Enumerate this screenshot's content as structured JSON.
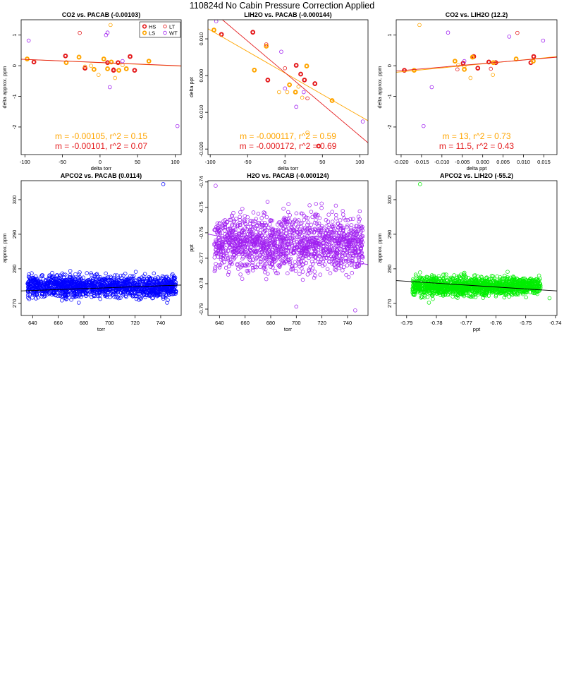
{
  "page_title": "110824d   No Cabin Pressure Correction Applied",
  "colors": {
    "HS": "#e41a1c",
    "LS": "#ffa500",
    "LT": "#e41a1c",
    "WT": "#a020f0",
    "blue": "#0000ff",
    "purple": "#a020f0",
    "green": "#00ee00",
    "axis": "#000000"
  },
  "chart_data": [
    {
      "type": "scatter",
      "title": "CO2 vs. PACAB (-0.00103)",
      "xlabel": "delta torr",
      "ylabel": "delta approx. ppm",
      "xlim": [
        -105,
        108
      ],
      "ylim": [
        -2.9,
        1.5
      ],
      "xticks": [
        -100,
        -50,
        0,
        50,
        100
      ],
      "yticks": [
        -2,
        -1,
        0,
        1
      ],
      "legend": {
        "placement": "top-right",
        "entries": [
          {
            "label": "HS",
            "color": "#e41a1c",
            "thick": true
          },
          {
            "label": "LT",
            "color": "#e41a1c",
            "thick": false
          },
          {
            "label": "LS",
            "color": "#ffa500",
            "thick": true
          },
          {
            "label": "WT",
            "color": "#a020f0",
            "thick": false
          }
        ]
      },
      "series": [
        {
          "name": "HS",
          "color": "#e41a1c",
          "thick": true,
          "x": [
            -88,
            -46,
            -20,
            10,
            18,
            24,
            40,
            46
          ],
          "y": [
            0.12,
            0.32,
            -0.08,
            0.1,
            -0.15,
            0.1,
            0.3,
            -0.15
          ]
        },
        {
          "name": "LS",
          "color": "#ffa500",
          "thick": true,
          "x": [
            -97,
            -45,
            -28,
            -8,
            5,
            10,
            15,
            25,
            35,
            65
          ],
          "y": [
            0.22,
            0.1,
            0.28,
            -0.12,
            0.22,
            -0.1,
            0.12,
            -0.15,
            -0.1,
            0.15
          ]
        },
        {
          "name": "LT",
          "color": "#e41a1c",
          "thick": false,
          "x": [
            -27,
            18
          ],
          "y": [
            1.07,
            -0.12
          ]
        },
        {
          "name": "WT",
          "color": "#a020f0",
          "thick": false,
          "x": [
            -95,
            8,
            10,
            13,
            30,
            103
          ],
          "y": [
            0.82,
            1.0,
            1.08,
            -0.7,
            0.15,
            -1.97
          ]
        },
        {
          "name": "",
          "color": "#ffa500",
          "thick": false,
          "x": [
            -20,
            -12,
            -2,
            14,
            20,
            30
          ],
          "y": [
            -0.03,
            0.0,
            -0.3,
            1.33,
            -0.4,
            0.02
          ]
        }
      ],
      "lines": [
        {
          "color": "#ffa500",
          "slope": -0.00105,
          "intercept": 0.1
        },
        {
          "color": "#e41a1c",
          "slope": -0.00101,
          "intercept": 0.105
        }
      ],
      "annotations": [
        {
          "text": "m = -0.00105, r^2 = 0.15",
          "color": "#ffa500"
        },
        {
          "text": "m = -0.00101, r^2 = 0.07",
          "color": "#e41a1c"
        }
      ]
    },
    {
      "type": "scatter",
      "title": "LIH2O vs. PACAB (-0.000144)",
      "xlabel": "delta torr",
      "ylabel": "delta ppt",
      "xlim": [
        -103,
        111
      ],
      "ylim": [
        -0.0215,
        0.0152
      ],
      "xticks": [
        -100,
        -50,
        0,
        50,
        100
      ],
      "yticks": [
        -0.02,
        -0.01,
        0,
        0.01
      ],
      "ytick_labels": [
        "-0.020",
        "-0.010",
        "0.000",
        "0.010"
      ],
      "series": [
        {
          "name": "HS",
          "color": "#e41a1c",
          "thick": true,
          "x": [
            -85,
            -43,
            -23,
            15,
            21,
            26,
            40,
            45
          ],
          "y": [
            0.0112,
            0.0118,
            -0.0012,
            0.0028,
            0.0004,
            -0.0012,
            -0.0022,
            -0.0192
          ]
        },
        {
          "name": "LS",
          "color": "#ffa500",
          "thick": true,
          "x": [
            -95,
            -41,
            -25,
            6,
            14,
            29,
            63
          ],
          "y": [
            0.0124,
            0.0015,
            0.008,
            -0.0025,
            -0.0045,
            0.0026,
            -0.0068
          ]
        },
        {
          "name": "LT",
          "color": "#e41a1c",
          "thick": false,
          "x": [
            -25,
            0,
            30
          ],
          "y": [
            0.0085,
            0.002,
            -0.0062
          ]
        },
        {
          "name": "WT",
          "color": "#a020f0",
          "thick": false,
          "x": [
            -92,
            -5,
            0,
            15,
            25,
            104
          ],
          "y": [
            0.0148,
            0.0065,
            -0.0035,
            -0.0085,
            -0.0045,
            -0.0125
          ]
        },
        {
          "name": "",
          "color": "#ffa500",
          "thick": false,
          "x": [
            -8,
            3,
            18,
            23,
            30
          ],
          "y": [
            -0.0045,
            -0.0045,
            -0.003,
            -0.006,
            -0.0155
          ]
        }
      ],
      "lines": [
        {
          "color": "#ffa500",
          "slope": -0.000117,
          "intercept": 0.0007
        },
        {
          "color": "#e41a1c",
          "slope": -0.000172,
          "intercept": 0.0008
        }
      ],
      "annotations": [
        {
          "text": "m = -0.000117, r^2 = 0.59",
          "color": "#ffa500"
        },
        {
          "text": "m = -0.000172, r^2 = 0.69",
          "color": "#e41a1c"
        }
      ]
    },
    {
      "type": "scatter",
      "title": "CO2 vs. LIH2O (12.2)",
      "xlabel": "delta ppt",
      "ylabel": "delta approx. ppm",
      "xlim": [
        -0.0212,
        0.0182
      ],
      "ylim": [
        -2.9,
        1.5
      ],
      "xticks": [
        -0.02,
        -0.015,
        -0.01,
        -0.005,
        0,
        0.005,
        0.01,
        0.015
      ],
      "xtick_labels": [
        "-0.020",
        "-0.015",
        "-0.010",
        "-0.005",
        "0.000",
        "0.005",
        "0.010",
        "0.015"
      ],
      "yticks": [
        -2,
        -1,
        0,
        1
      ],
      "series": [
        {
          "name": "HS",
          "color": "#e41a1c",
          "thick": true,
          "x": [
            -0.0192,
            -0.0048,
            -0.0022,
            0.0015,
            0.0032,
            0.0118,
            0.0125,
            -0.0012
          ],
          "y": [
            -0.15,
            0.08,
            0.3,
            0.12,
            0.1,
            0.1,
            0.3,
            -0.08
          ]
        },
        {
          "name": "LS",
          "color": "#ffa500",
          "thick": true,
          "x": [
            -0.0168,
            -0.0068,
            -0.0045,
            -0.0025,
            0.0026,
            0.0082,
            0.0124
          ],
          "y": [
            -0.15,
            0.15,
            -0.12,
            0.28,
            0.1,
            0.22,
            0.15
          ]
        },
        {
          "name": "LT",
          "color": "#e41a1c",
          "thick": false,
          "x": [
            -0.0062,
            0.002,
            0.0085
          ],
          "y": [
            -0.12,
            -0.1,
            1.07
          ]
        },
        {
          "name": "WT",
          "color": "#a020f0",
          "thick": false,
          "x": [
            -0.0125,
            -0.0085,
            -0.0045,
            0.0065,
            0.0148,
            -0.0145
          ],
          "y": [
            -0.7,
            1.08,
            0.15,
            0.95,
            0.82,
            -1.97
          ]
        },
        {
          "name": "",
          "color": "#ffa500",
          "thick": false,
          "x": [
            -0.0155,
            -0.006,
            -0.0045,
            -0.003,
            0.0025
          ],
          "y": [
            1.33,
            0.02,
            -0.03,
            -0.4,
            -0.3
          ]
        }
      ],
      "lines": [
        {
          "color": "#ffa500",
          "slope": 13,
          "intercept": 0.06
        },
        {
          "color": "#e41a1c",
          "slope": 11.5,
          "intercept": 0.07
        }
      ],
      "annotations": [
        {
          "text": "m = 13, r^2 = 0.73",
          "color": "#ffa500"
        },
        {
          "text": "m = 11.5, r^2 = 0.43",
          "color": "#e41a1c"
        }
      ]
    },
    {
      "type": "scatter",
      "title": "APCO2 vs. PACAB (0.0114)",
      "xlabel": "torr",
      "ylabel": "approx. ppm",
      "xlim": [
        631,
        756
      ],
      "ylim": [
        266.5,
        305.5
      ],
      "xticks": [
        640,
        660,
        680,
        700,
        720,
        740
      ],
      "yticks": [
        270,
        280,
        290,
        300
      ],
      "cloud": {
        "color": "#0000ff",
        "x_range": [
          636,
          752
        ],
        "y_center": 274.9,
        "y_spread": 1.7,
        "outliers": [
          [
            742,
            304.5
          ],
          [
            745,
            270.2
          ],
          [
            676,
            270.2
          ]
        ]
      },
      "lines": [
        {
          "color": "#000000",
          "from": [
            631,
            273.6
          ],
          "to": [
            756,
            275.3
          ]
        }
      ]
    },
    {
      "type": "scatter",
      "title": "H2O vs. PACAB (-0.000124)",
      "xlabel": "torr",
      "ylabel": "ppt",
      "xlim": [
        631,
        756
      ],
      "ylim": [
        -0.7925,
        -0.7395
      ],
      "xticks": [
        640,
        660,
        680,
        700,
        720,
        740
      ],
      "yticks": [
        -0.79,
        -0.78,
        -0.77,
        -0.76,
        -0.75,
        -0.74
      ],
      "cloud": {
        "color": "#a020f0",
        "x_range": [
          636,
          752
        ],
        "y_center": -0.764,
        "y_spread": 0.006,
        "outliers": [
          [
            637,
            -0.7415
          ],
          [
            746,
            -0.7905
          ],
          [
            700,
            -0.789
          ]
        ]
      },
      "lines": [
        {
          "color": "#a020f0",
          "from": [
            631,
            -0.7605
          ],
          "to": [
            756,
            -0.7725
          ]
        }
      ]
    },
    {
      "type": "scatter",
      "title": "APCO2 vs. LIH2O (-55.2)",
      "xlabel": "ppt",
      "ylabel": "approx. ppm",
      "xlim": [
        -0.7935,
        -0.7395
      ],
      "ylim": [
        266.5,
        305.5
      ],
      "xticks": [
        -0.79,
        -0.78,
        -0.77,
        -0.76,
        -0.75,
        -0.74
      ],
      "yticks": [
        270,
        280,
        290,
        300
      ],
      "cloud": {
        "color": "#00ee00",
        "x_range": [
          -0.788,
          -0.745
        ],
        "y_center": 275.0,
        "y_spread": 1.5,
        "outliers": [
          [
            -0.7855,
            304.5
          ],
          [
            -0.7825,
            270.2
          ],
          [
            -0.742,
            271.5
          ]
        ]
      },
      "lines": [
        {
          "color": "#000000",
          "from": [
            -0.7935,
            276.6
          ],
          "to": [
            -0.7395,
            273.6
          ]
        }
      ]
    }
  ]
}
